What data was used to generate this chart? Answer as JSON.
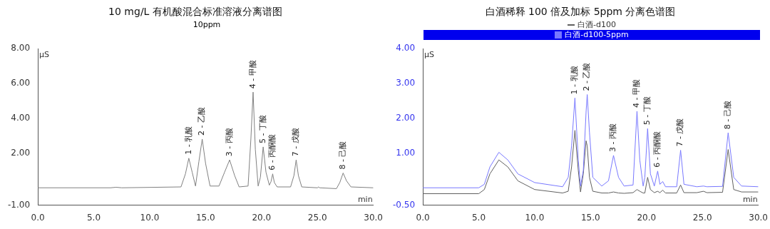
{
  "chart_data": [
    {
      "type": "line",
      "title": "10 mg/L 有机酸混合标准溶液分离谱图",
      "subtitle": "10ppm",
      "xlabel": "min",
      "ylabel": "µS",
      "x": [
        0,
        6.5,
        7,
        7.5,
        12.8,
        13.2,
        13.5,
        13.8,
        14.1,
        14.4,
        14.7,
        15.0,
        15.4,
        16.2,
        16.7,
        17.15,
        17.6,
        18.0,
        18.8,
        19.05,
        19.25,
        19.45,
        19.7,
        19.9,
        20.15,
        20.4,
        20.7,
        20.85,
        21.0,
        21.15,
        21.4,
        22.6,
        22.9,
        23.1,
        23.3,
        23.6,
        25.0,
        25.1,
        25.2,
        26.7,
        27.0,
        27.3,
        27.6,
        28.0,
        30
      ],
      "series": [
        {
          "color": "#808080",
          "values": [
            0,
            0,
            0.03,
            0,
            0.05,
            0.8,
            1.7,
            0.9,
            0.1,
            1.5,
            2.8,
            1.4,
            0.1,
            0.1,
            0.9,
            1.6,
            0.7,
            0.05,
            0.1,
            2.8,
            5.5,
            2.2,
            0.1,
            0.6,
            2.35,
            0.9,
            0.15,
            0.35,
            0.8,
            0.3,
            0.05,
            0.05,
            0.7,
            1.6,
            0.7,
            0.05,
            0,
            0.05,
            0,
            -0.05,
            0.3,
            0.85,
            0.4,
            0.05,
            0
          ]
        }
      ],
      "xlim": [
        0,
        30
      ],
      "xticks": [
        {
          "value": 0,
          "label": "0.0"
        },
        {
          "value": 5,
          "label": "5.0"
        },
        {
          "value": 10,
          "label": "10.0"
        },
        {
          "value": 15,
          "label": "15.0"
        },
        {
          "value": 20,
          "label": "20.0"
        },
        {
          "value": 25,
          "label": "25.0"
        },
        {
          "value": 30,
          "label": "30.0"
        }
      ],
      "ylim": [
        -1,
        8
      ],
      "yticks": [
        {
          "value": -1,
          "label": "-1.00"
        },
        {
          "value": 2,
          "label": "2.00"
        },
        {
          "value": 4,
          "label": "4.00"
        },
        {
          "value": 6,
          "label": "6.00"
        },
        {
          "value": 8,
          "label": "8.00"
        }
      ],
      "grid": false,
      "legend": false,
      "marker": "none",
      "line_style": "solid",
      "annotations": [
        {
          "text": "1 - 乳酸",
          "x": 13.5,
          "y": 1.7
        },
        {
          "text": "2 - 乙酸",
          "x": 14.7,
          "y": 2.8
        },
        {
          "text": "3 - 丙酸",
          "x": 17.15,
          "y": 1.6
        },
        {
          "text": "4 - 甲酸",
          "x": 19.25,
          "y": 5.5
        },
        {
          "text": "5 - 丁酸",
          "x": 20.15,
          "y": 2.35
        },
        {
          "text": "6 - 丙酮酸",
          "x": 21.0,
          "y": 0.8
        },
        {
          "text": "7 - 戊酸",
          "x": 23.1,
          "y": 1.6
        },
        {
          "text": "8 - 己酸",
          "x": 27.3,
          "y": 0.85
        }
      ]
    },
    {
      "type": "line",
      "title": "白酒稀释 100 倍及加标 5ppm 分离色谱图",
      "xlabel": "min",
      "ylabel": "µS",
      "x": [
        0,
        5,
        5.5,
        6,
        6.8,
        7.6,
        8.5,
        10,
        12.5,
        13.0,
        13.3,
        13.6,
        13.9,
        14.1,
        14.35,
        14.6,
        14.7,
        14.9,
        15.2,
        16.0,
        16.6,
        17.05,
        17.5,
        18.0,
        18.8,
        19.15,
        19.4,
        19.7,
        19.85,
        20.1,
        20.35,
        20.7,
        21.0,
        21.2,
        21.45,
        21.7,
        22.7,
        23.05,
        23.35,
        24.5,
        25.1,
        25.4,
        26.8,
        27.3,
        27.8,
        28.5,
        30
      ],
      "series": [
        {
          "name": "白酒-d100",
          "color": "#606060",
          "values": [
            -0.17,
            -0.17,
            -0.05,
            0.4,
            0.8,
            0.6,
            0.2,
            -0.05,
            -0.15,
            -0.1,
            0.6,
            1.65,
            0.5,
            -0.12,
            0.4,
            1.35,
            1.2,
            0.3,
            -0.1,
            -0.15,
            -0.15,
            -0.12,
            -0.15,
            -0.16,
            -0.14,
            -0.05,
            -0.1,
            -0.15,
            -0.15,
            0.3,
            -0.05,
            -0.14,
            -0.1,
            -0.14,
            -0.07,
            -0.15,
            -0.15,
            0.08,
            -0.14,
            -0.14,
            -0.1,
            -0.14,
            -0.13,
            1.1,
            -0.05,
            -0.12,
            -0.12
          ]
        },
        {
          "name": "白酒-d100-5ppm",
          "color": "#7878ff",
          "values": [
            0,
            0,
            0.1,
            0.6,
            1.02,
            0.8,
            0.4,
            0.15,
            0.03,
            0.3,
            1.2,
            2.58,
            0.8,
            0.05,
            0.5,
            2.2,
            2.68,
            1.6,
            0.3,
            0.05,
            0.2,
            0.93,
            0.3,
            0.05,
            0.08,
            2.2,
            0.8,
            0.05,
            0.3,
            1.7,
            0.4,
            0.05,
            0.48,
            0.1,
            0.18,
            0.03,
            0.03,
            1.08,
            0.1,
            0.03,
            0.05,
            0.03,
            0.04,
            1.58,
            0.3,
            0.05,
            0.03
          ]
        }
      ],
      "xlim": [
        0,
        30
      ],
      "xticks": [
        {
          "value": 0,
          "label": "0.0"
        },
        {
          "value": 5,
          "label": "5.0"
        },
        {
          "value": 10,
          "label": "10.0"
        },
        {
          "value": 15,
          "label": "15.0"
        },
        {
          "value": 20,
          "label": "20.0"
        },
        {
          "value": 25,
          "label": "25.0"
        },
        {
          "value": 30,
          "label": "30.0"
        }
      ],
      "ylim": [
        -0.5,
        4
      ],
      "yticks": [
        {
          "value": -0.5,
          "label": "-0.50"
        },
        {
          "value": 1,
          "label": "1.00"
        },
        {
          "value": 2,
          "label": "2.00"
        },
        {
          "value": 3,
          "label": "3.00"
        },
        {
          "value": 4,
          "label": "4.00"
        }
      ],
      "grid": false,
      "legend": "top",
      "marker": "none",
      "line_style": "solid",
      "annotations": [
        {
          "text": "1 - 乳酸",
          "x": 13.6,
          "y": 2.58
        },
        {
          "text": "2 - 乙酸",
          "x": 14.7,
          "y": 2.68
        },
        {
          "text": "3 - 丙酸",
          "x": 17.05,
          "y": 0.93
        },
        {
          "text": "4 - 甲酸",
          "x": 19.15,
          "y": 2.2
        },
        {
          "text": "5 - 丁酸",
          "x": 20.1,
          "y": 1.7
        },
        {
          "text": "6 - 丙酮酸",
          "x": 21.0,
          "y": 0.48
        },
        {
          "text": "7 - 戊酸",
          "x": 23.05,
          "y": 1.08
        },
        {
          "text": "8 - 己酸",
          "x": 27.3,
          "y": 1.58
        }
      ]
    }
  ]
}
